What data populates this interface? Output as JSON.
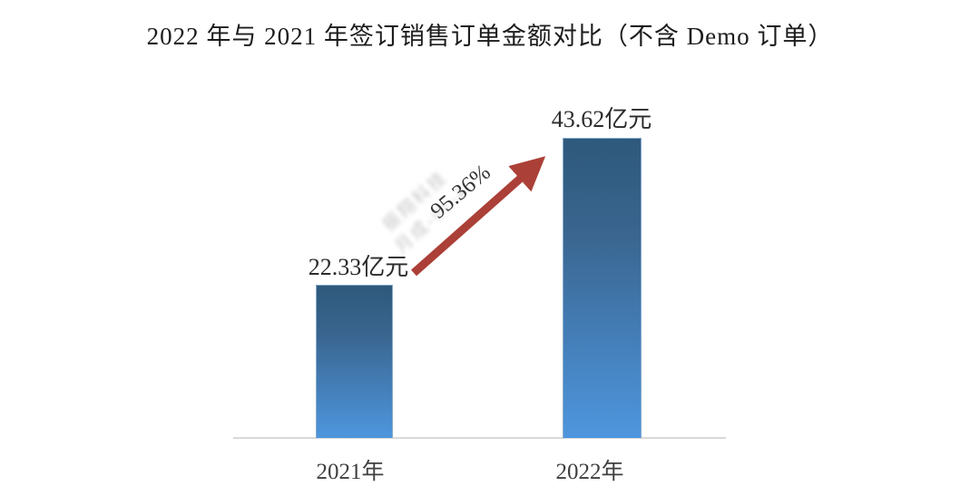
{
  "chart_data": {
    "type": "bar",
    "title": "2022 年与 2021 年签订销售订单金额对比（不含 Demo 订单）",
    "categories": [
      "2021年",
      "2022年"
    ],
    "values": [
      22.33,
      43.62
    ],
    "unit": "亿元",
    "data_labels": [
      "22.33亿元",
      "43.62亿元"
    ],
    "growth_annotation": "95.36%",
    "xlabel": "",
    "ylabel": "",
    "ylim": [
      0,
      45
    ],
    "legend": "none",
    "gridlines": false,
    "colors": {
      "bar_gradient_top": "#2E597C",
      "bar_gradient_bottom": "#4E96DE",
      "arrow": "#AB4038",
      "axis_baseline": "#D9D9D9",
      "title_text": "#1C1C1C",
      "label_text": "#2B2B2B"
    }
  },
  "watermark": {
    "line1": "振翔科技",
    "line2": "月成-01-4"
  }
}
